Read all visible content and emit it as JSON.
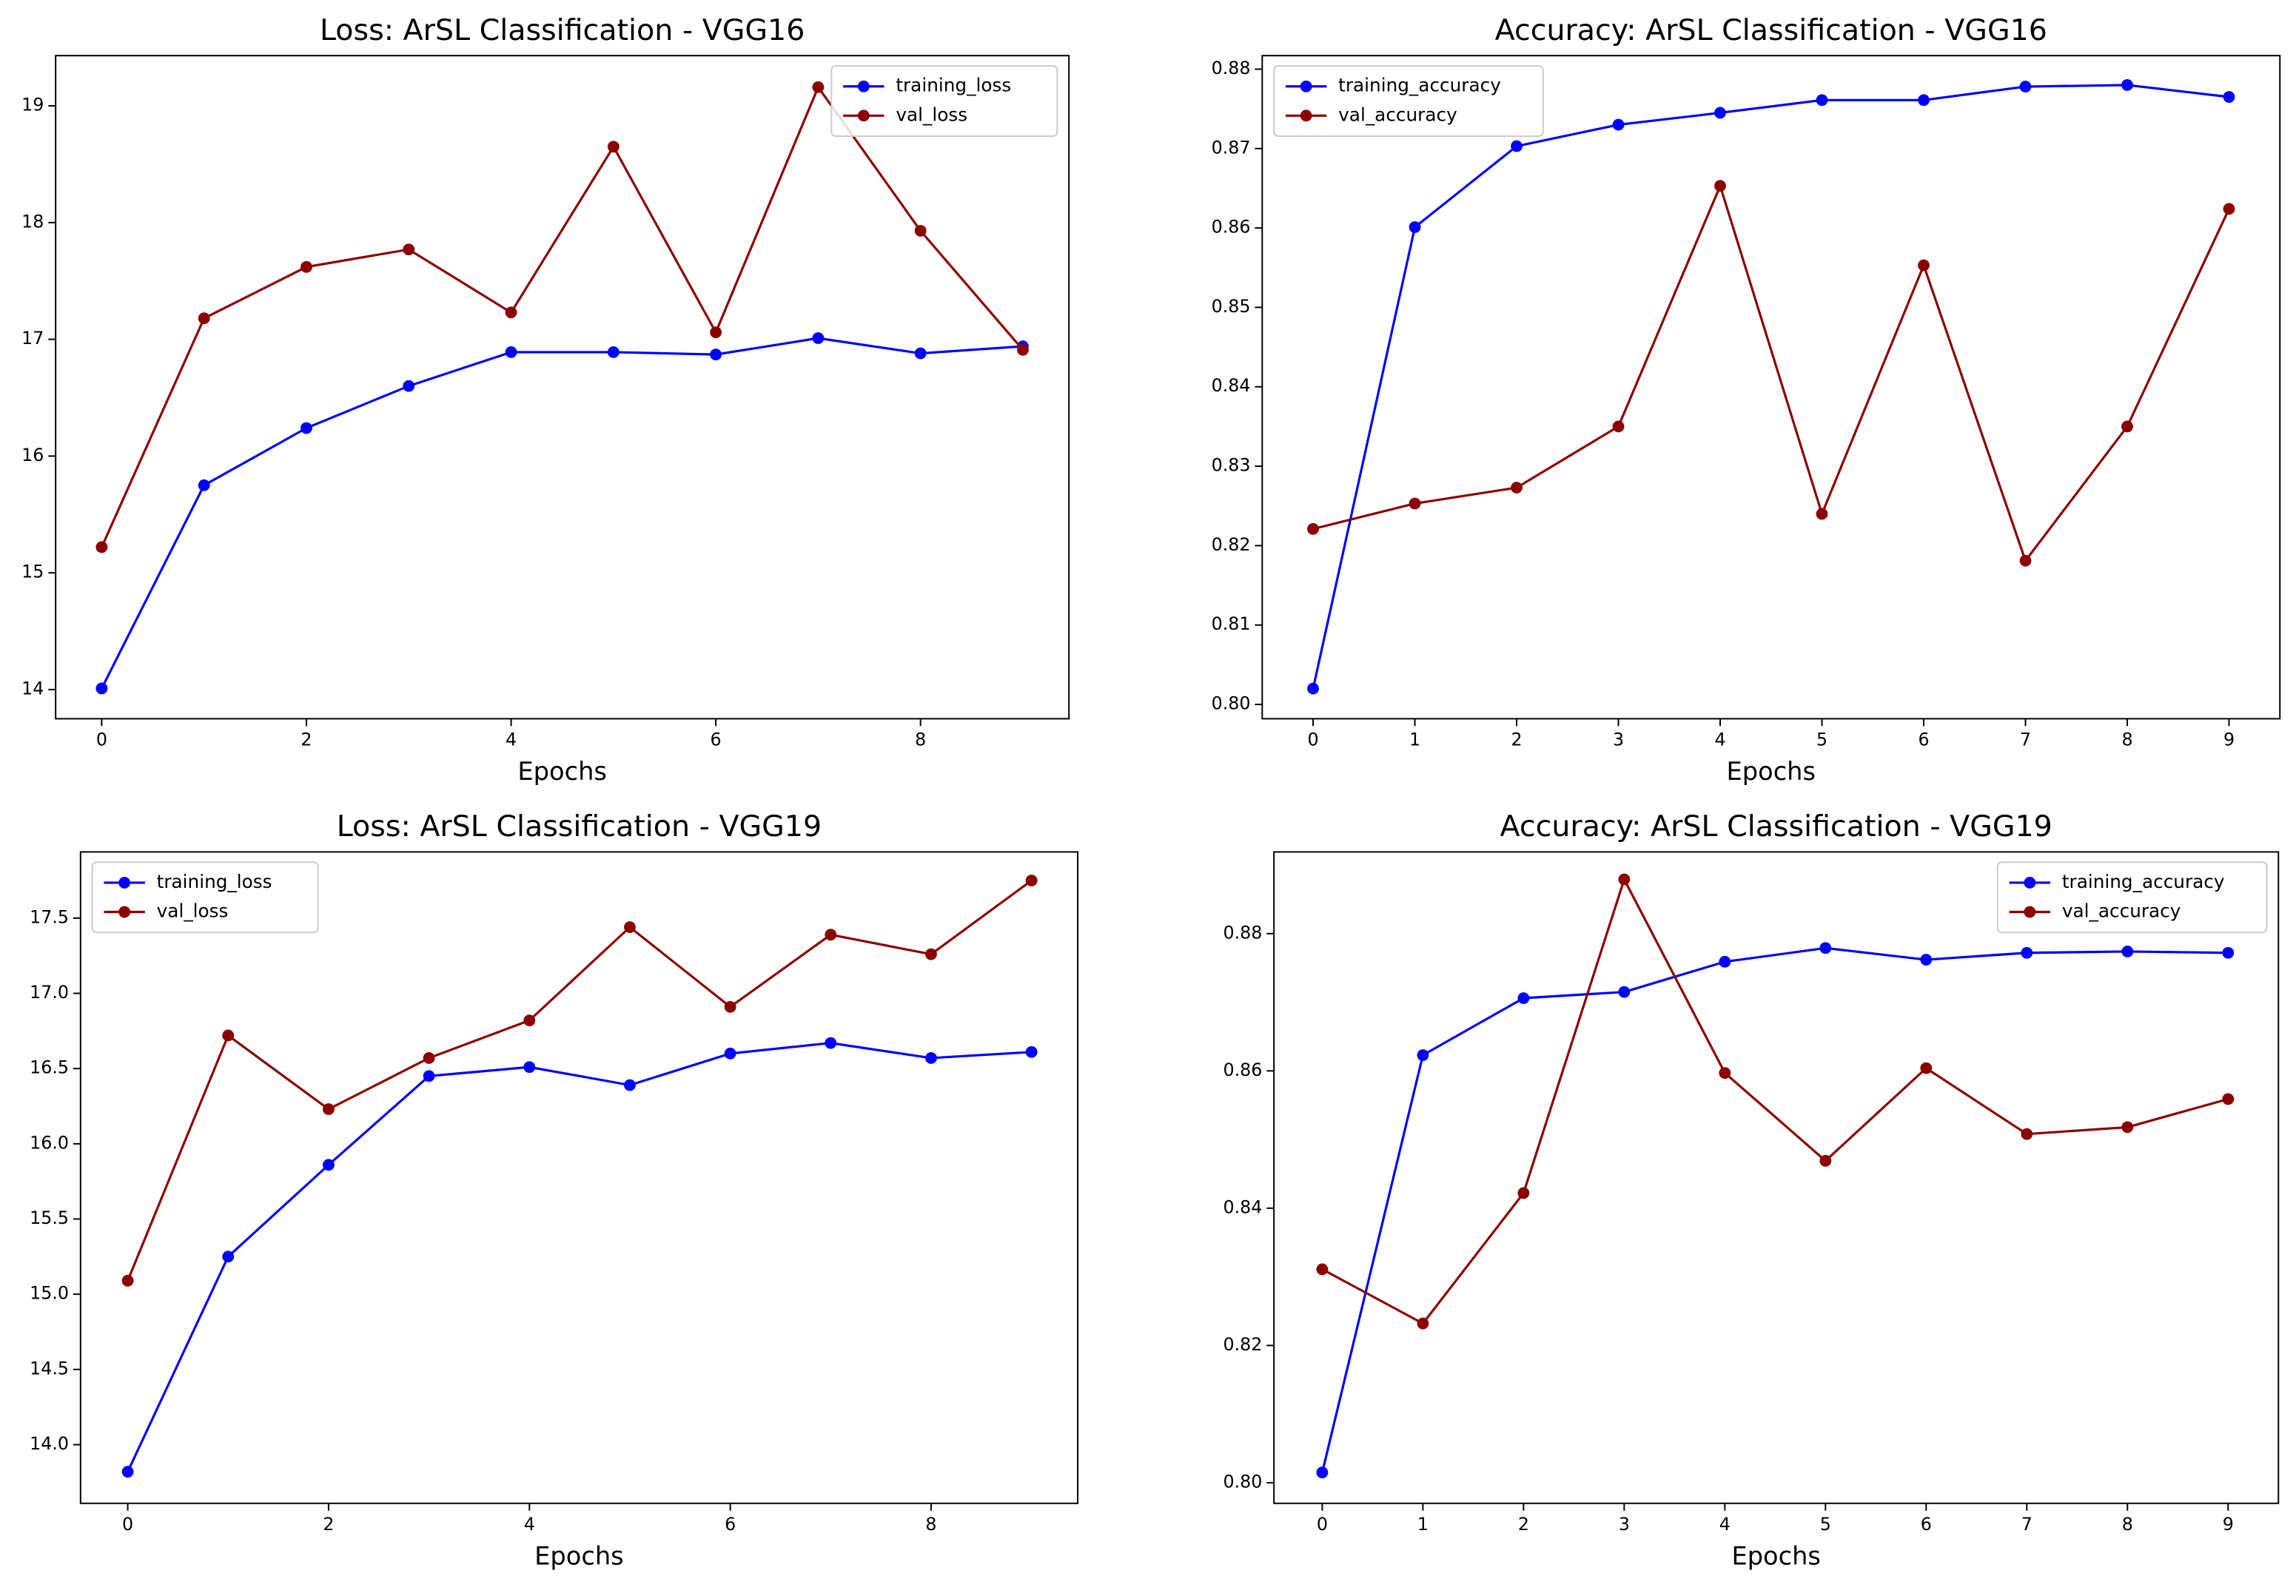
{
  "chart_data": [
    {
      "type": "line",
      "title": "Loss: ArSL Classification - VGG16",
      "xlabel": "Epochs",
      "x": [
        0,
        1,
        2,
        3,
        4,
        5,
        6,
        7,
        8,
        9
      ],
      "series": [
        {
          "name": "training_loss",
          "color": "#0000ff",
          "values": [
            14.01,
            15.75,
            16.24,
            16.6,
            16.89,
            16.89,
            16.87,
            17.01,
            16.88,
            16.94
          ]
        },
        {
          "name": "val_loss",
          "color": "#8b0000",
          "values": [
            15.22,
            17.18,
            17.62,
            17.77,
            17.23,
            18.65,
            17.06,
            19.16,
            17.93,
            16.91
          ]
        }
      ],
      "xlim": [
        -0.45,
        9.45
      ],
      "ylim": [
        13.75,
        19.43
      ],
      "xticks": [
        0,
        2,
        4,
        6,
        8
      ],
      "yticks": [
        14,
        15,
        16,
        17,
        18,
        19
      ],
      "legend": "upper right"
    },
    {
      "type": "line",
      "title": "Accuracy: ArSL Classification - VGG16",
      "xlabel": "Epochs",
      "x": [
        0,
        1,
        2,
        3,
        4,
        5,
        6,
        7,
        8,
        9
      ],
      "series": [
        {
          "name": "training_accuracy",
          "color": "#0000ff",
          "values": [
            0.802,
            0.8601,
            0.8703,
            0.873,
            0.8745,
            0.8761,
            0.8761,
            0.8778,
            0.878,
            0.8765
          ]
        },
        {
          "name": "val_accuracy",
          "color": "#8b0000",
          "values": [
            0.8221,
            0.8253,
            0.8273,
            0.835,
            0.8653,
            0.824,
            0.8553,
            0.8181,
            0.835,
            0.8624
          ]
        }
      ],
      "xlim": [
        -0.5,
        9.5
      ],
      "ylim": [
        0.7982,
        0.8817
      ],
      "xticks": [
        0,
        1,
        2,
        3,
        4,
        5,
        6,
        7,
        8,
        9
      ],
      "yticks": [
        {
          "value": 0.8,
          "label": "0.80"
        },
        0.81,
        0.82,
        0.83,
        0.84,
        0.85,
        0.86,
        0.87,
        0.88
      ],
      "legend": "upper left"
    },
    {
      "type": "line",
      "title": "Loss: ArSL Classification - VGG19",
      "xlabel": "Epochs",
      "x": [
        0,
        1,
        2,
        3,
        4,
        5,
        6,
        7,
        8,
        9
      ],
      "series": [
        {
          "name": "training_loss",
          "color": "#0000ff",
          "values": [
            13.82,
            15.25,
            15.86,
            16.45,
            16.51,
            16.39,
            16.6,
            16.67,
            16.57,
            16.61
          ]
        },
        {
          "name": "val_loss",
          "color": "#8b0000",
          "values": [
            15.09,
            16.72,
            16.23,
            16.57,
            16.82,
            17.44,
            16.91,
            17.39,
            17.26,
            17.75
          ]
        }
      ],
      "xlim": [
        -0.47,
        9.46
      ],
      "ylim": [
        13.61,
        17.94
      ],
      "xticks": [
        0,
        2,
        4,
        6,
        8
      ],
      "yticks": [
        {
          "value": 14,
          "label": "14.0"
        },
        14.5,
        {
          "value": 15,
          "label": "15.0"
        },
        15.5,
        {
          "value": 16,
          "label": "16.0"
        },
        16.5,
        {
          "value": 17,
          "label": "17.0"
        },
        17.5
      ],
      "legend": "upper left"
    },
    {
      "type": "line",
      "title": "Accuracy: ArSL Classification - VGG19",
      "xlabel": "Epochs",
      "x": [
        0,
        1,
        2,
        3,
        4,
        5,
        6,
        7,
        8,
        9
      ],
      "series": [
        {
          "name": "training_accuracy",
          "color": "#0000ff",
          "values": [
            0.8015,
            0.8623,
            0.8706,
            0.8715,
            0.8759,
            0.8779,
            0.8762,
            0.8772,
            0.8774,
            0.8772
          ]
        },
        {
          "name": "val_accuracy",
          "color": "#8b0000",
          "values": [
            0.8311,
            0.8232,
            0.8422,
            0.8879,
            0.8597,
            0.8469,
            0.8604,
            0.8508,
            0.8518,
            0.8559
          ]
        }
      ],
      "xlim": [
        -0.48,
        9.5
      ],
      "ylim": [
        0.797,
        0.8919
      ],
      "xticks": [
        0,
        1,
        2,
        3,
        4,
        5,
        6,
        7,
        8,
        9
      ],
      "yticks": [
        {
          "value": 0.8,
          "label": "0.80"
        },
        0.82,
        0.84,
        0.86,
        0.88
      ],
      "legend": "upper right"
    }
  ]
}
